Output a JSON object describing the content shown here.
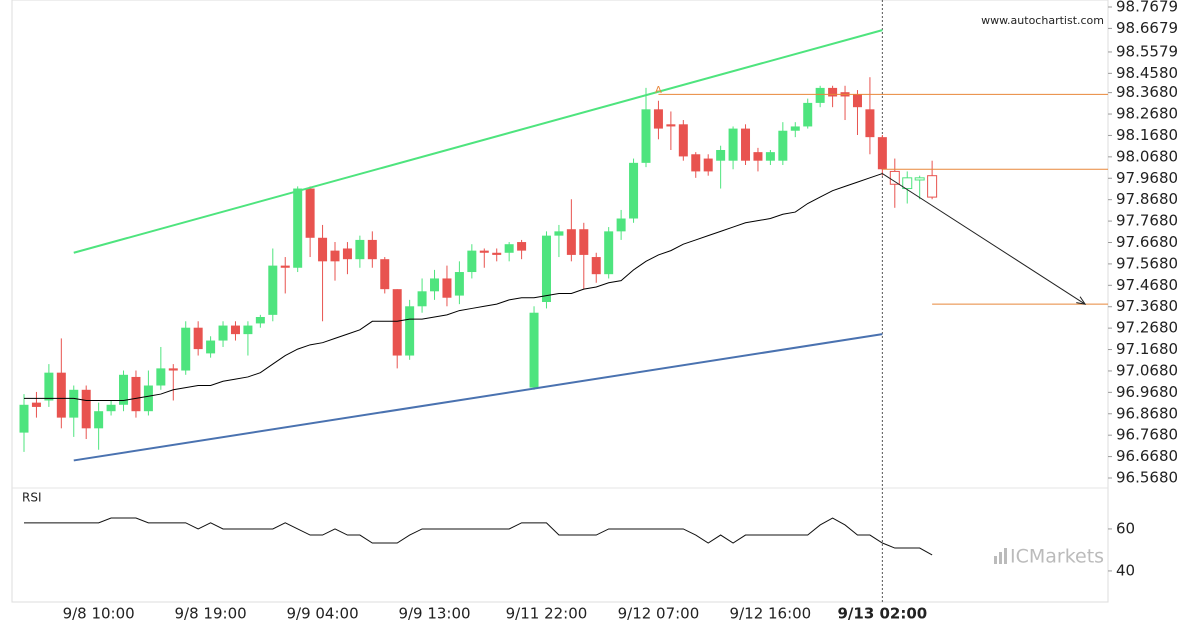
{
  "chart_data": {
    "type": "candlestick",
    "watermark": "www.autochartist.com",
    "categories": [
      null,
      null,
      null,
      null,
      null,
      null,
      "9/8 10:00",
      null,
      null,
      null,
      null,
      null,
      null,
      null,
      null,
      "9/8 19:00",
      null,
      null,
      null,
      null,
      null,
      null,
      null,
      null,
      "9/9 04:00",
      null,
      null,
      null,
      null,
      null,
      null,
      null,
      null,
      "9/9 13:00",
      null,
      null,
      null,
      null,
      null,
      null,
      null,
      null,
      "9/11 22:00",
      null,
      null,
      null,
      null,
      null,
      null,
      null,
      null,
      "9/12 07:00",
      null,
      null,
      null,
      null,
      null,
      null,
      null,
      null,
      "9/12 16:00",
      null,
      null,
      null,
      null,
      null,
      null,
      null,
      null,
      "9/13 02:00",
      null,
      null,
      null,
      null
    ],
    "open": [
      96.78,
      96.92,
      96.93,
      97.06,
      96.85,
      96.98,
      96.8,
      96.88,
      96.91,
      97.04,
      96.88,
      97.0,
      97.08,
      97.07,
      97.27,
      97.15,
      97.21,
      97.28,
      97.24,
      97.29,
      97.33,
      97.56,
      97.55,
      97.92,
      97.69,
      97.63,
      97.64,
      97.59,
      97.68,
      97.59,
      97.45,
      97.14,
      97.37,
      97.44,
      97.5,
      97.42,
      97.53,
      97.63,
      97.62,
      97.62,
      97.67,
      96.99,
      97.39,
      97.7,
      97.73,
      97.73,
      97.6,
      97.52,
      97.72,
      97.78,
      98.04,
      98.29,
      98.22,
      98.22,
      98.08,
      98.06,
      98.05,
      98.05,
      98.2,
      98.09,
      98.05,
      98.05,
      98.19,
      98.21,
      98.32,
      98.39,
      98.37,
      98.36,
      98.29,
      98.16,
      98.0,
      97.92,
      97.96,
      97.98
    ],
    "high": [
      96.96,
      96.97,
      97.1,
      97.22,
      97.0,
      97.0,
      96.92,
      96.93,
      97.07,
      97.07,
      97.07,
      97.18,
      97.1,
      97.3,
      97.3,
      97.23,
      97.3,
      97.3,
      97.3,
      97.33,
      97.64,
      97.6,
      97.93,
      97.93,
      97.75,
      97.67,
      97.67,
      97.7,
      97.72,
      97.6,
      97.45,
      97.4,
      97.5,
      97.54,
      97.56,
      97.58,
      97.66,
      97.64,
      97.64,
      97.67,
      97.68,
      97.37,
      97.72,
      97.75,
      97.87,
      97.76,
      97.62,
      97.74,
      97.82,
      98.06,
      98.39,
      98.33,
      98.28,
      98.24,
      98.09,
      98.08,
      98.12,
      98.21,
      98.22,
      98.11,
      98.1,
      98.23,
      98.23,
      98.34,
      98.4,
      98.4,
      98.4,
      98.38,
      98.44,
      98.17,
      98.06,
      98.0,
      97.98,
      98.05
    ],
    "low": [
      96.69,
      96.85,
      96.9,
      96.8,
      96.76,
      96.75,
      96.7,
      96.86,
      96.88,
      96.85,
      96.86,
      96.98,
      96.93,
      97.05,
      97.14,
      97.13,
      97.18,
      97.21,
      97.14,
      97.27,
      97.3,
      97.43,
      97.53,
      97.6,
      97.3,
      97.49,
      97.52,
      97.55,
      97.55,
      97.43,
      97.08,
      97.12,
      97.34,
      97.4,
      97.37,
      97.38,
      97.5,
      97.55,
      97.58,
      97.58,
      97.59,
      96.98,
      97.36,
      97.6,
      97.58,
      97.45,
      97.48,
      97.5,
      97.68,
      97.76,
      98.02,
      98.15,
      98.1,
      98.05,
      97.97,
      97.98,
      97.92,
      98.01,
      98.03,
      98.0,
      98.03,
      98.03,
      98.16,
      98.2,
      98.3,
      98.3,
      98.24,
      98.17,
      98.08,
      97.98,
      97.83,
      97.85,
      97.87,
      97.87
    ],
    "close": [
      96.91,
      96.9,
      97.06,
      96.85,
      96.98,
      96.8,
      96.88,
      96.91,
      97.05,
      96.88,
      97.0,
      97.08,
      97.07,
      97.27,
      97.17,
      97.21,
      97.28,
      97.24,
      97.28,
      97.32,
      97.56,
      97.55,
      97.92,
      97.69,
      97.58,
      97.58,
      97.59,
      97.68,
      97.59,
      97.45,
      97.14,
      97.37,
      97.44,
      97.5,
      97.41,
      97.53,
      97.63,
      97.62,
      97.61,
      97.66,
      97.63,
      97.34,
      97.7,
      97.72,
      97.61,
      97.61,
      97.52,
      97.72,
      97.78,
      98.04,
      98.29,
      98.2,
      98.21,
      98.07,
      98.0,
      98.0,
      98.1,
      98.2,
      98.05,
      98.05,
      98.09,
      98.19,
      98.21,
      98.32,
      98.39,
      98.35,
      98.35,
      98.3,
      98.16,
      98.01,
      97.94,
      97.97,
      97.97,
      97.88
    ],
    "up_color": "#4ee47e",
    "down_color": "#e8534f",
    "hollow_last": 4,
    "ma": {
      "color": "#000000",
      "values": [
        96.94,
        96.94,
        96.94,
        96.94,
        96.94,
        96.93,
        96.93,
        96.93,
        96.93,
        96.94,
        96.95,
        96.96,
        96.98,
        96.99,
        97.0,
        97.0,
        97.02,
        97.03,
        97.04,
        97.06,
        97.1,
        97.14,
        97.17,
        97.19,
        97.2,
        97.22,
        97.24,
        97.26,
        97.3,
        97.3,
        97.3,
        97.31,
        97.31,
        97.32,
        97.33,
        97.35,
        97.36,
        97.37,
        97.38,
        97.4,
        97.41,
        97.41,
        97.42,
        97.43,
        97.43,
        97.45,
        97.46,
        97.48,
        97.49,
        97.54,
        97.58,
        97.61,
        97.63,
        97.66,
        97.68,
        97.7,
        97.72,
        97.74,
        97.76,
        97.77,
        97.78,
        97.8,
        97.81,
        97.85,
        97.88,
        97.91,
        97.93,
        97.95,
        97.97,
        97.99,
        null,
        null,
        null,
        null
      ]
    },
    "ylim": [
      96.568,
      98.7679
    ],
    "yticks": [
      {
        "value": 98.7679,
        "label": "98.7679"
      },
      {
        "value": 98.6679,
        "label": "98.6679"
      },
      {
        "value": 98.5579,
        "label": "98.5579"
      },
      {
        "value": 98.458,
        "label": "98.4580"
      },
      {
        "value": 98.368,
        "label": "98.3680"
      },
      {
        "value": 98.268,
        "label": "98.2680"
      },
      {
        "value": 98.168,
        "label": "98.1680"
      },
      {
        "value": 98.068,
        "label": "98.0680"
      },
      {
        "value": 97.968,
        "label": "97.9680"
      },
      {
        "value": 97.868,
        "label": "97.8680"
      },
      {
        "value": 97.768,
        "label": "97.7680"
      },
      {
        "value": 97.668,
        "label": "97.6680"
      },
      {
        "value": 97.568,
        "label": "97.5680"
      },
      {
        "value": 97.468,
        "label": "97.4680"
      },
      {
        "value": 97.368,
        "label": "97.3680"
      },
      {
        "value": 97.268,
        "label": "97.2680"
      },
      {
        "value": 97.168,
        "label": "97.1680"
      },
      {
        "value": 97.068,
        "label": "97.0680"
      },
      {
        "value": 96.968,
        "label": "96.9680"
      },
      {
        "value": 96.868,
        "label": "96.8680"
      },
      {
        "value": 96.768,
        "label": "96.7680"
      },
      {
        "value": 96.668,
        "label": "96.6680"
      },
      {
        "value": 96.568,
        "label": "96.5680"
      }
    ],
    "pattern": [
      {
        "color": "#4ee47e",
        "x": [
          4,
          69
        ],
        "y": [
          97.62,
          98.66
        ]
      },
      {
        "color": "#4a72b0",
        "x": [
          4,
          69
        ],
        "y": [
          96.65,
          97.24
        ]
      }
    ],
    "levels": [
      {
        "color": "#e8873a",
        "from": 51,
        "value": 98.36
      },
      {
        "color": "#e8873a",
        "from": 69,
        "value": 98.01
      },
      {
        "color": "#e8873a",
        "from": 73,
        "value": 97.38
      }
    ],
    "point_label": {
      "text": "A",
      "x": 51,
      "y": 98.38,
      "color": "#e8873a"
    },
    "arrow": {
      "x": [
        69,
        85.3
      ],
      "y": [
        97.99,
        97.38
      ]
    },
    "now_index": 69,
    "rsi": {
      "title": "RSI",
      "values": [
        62.9,
        62.9,
        62.9,
        62.9,
        62.9,
        62.9,
        62.9,
        65.2,
        65.2,
        65.2,
        62.9,
        62.9,
        62.9,
        62.9,
        60,
        62.9,
        60,
        60,
        60,
        60,
        60,
        62.9,
        60,
        57.1,
        57.1,
        60,
        57.1,
        57.1,
        53.3,
        53.3,
        53.3,
        57.1,
        60,
        60,
        60,
        60,
        60,
        60,
        60,
        60,
        62.9,
        62.9,
        62.9,
        57.1,
        57.1,
        57.1,
        57.1,
        60,
        60,
        60,
        60,
        60,
        60,
        60,
        57.1,
        53.3,
        57.1,
        53.3,
        57.1,
        57.1,
        57.1,
        57.1,
        57.1,
        57.1,
        61.9,
        65.2,
        61.9,
        57.1,
        57.1,
        53.3,
        50.9,
        50.9,
        50.9,
        47.6
      ],
      "ylim": [
        25.2,
        79.5
      ],
      "yticks": [
        60,
        40
      ]
    },
    "logo": "ICMarkets"
  }
}
